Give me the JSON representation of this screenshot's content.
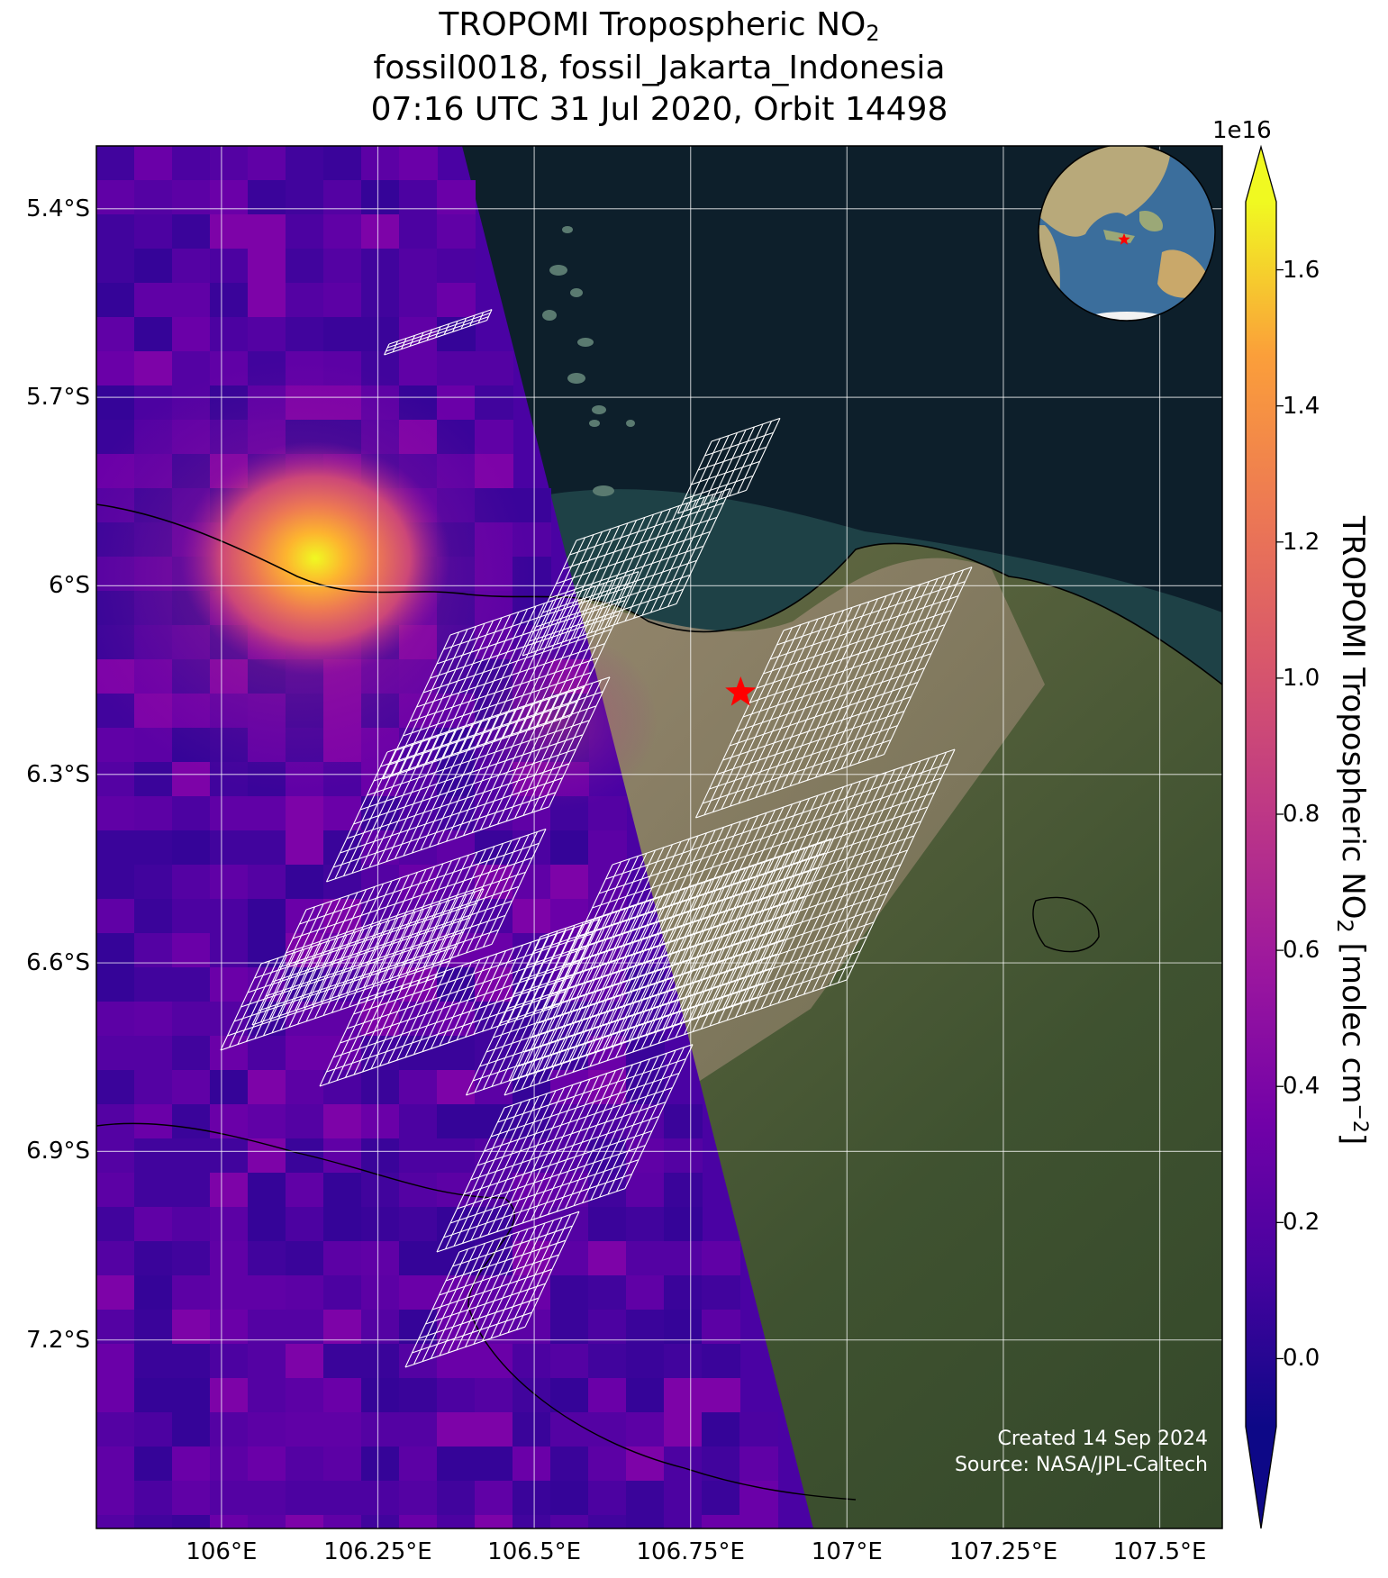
{
  "title": {
    "line1_text": "TROPOMI Tropospheric NO",
    "line1_sub": "2",
    "line2": "fossil0018, fossil_Jakarta_Indonesia",
    "line3": "07:16 UTC 31 Jul 2020, Orbit 14498"
  },
  "map": {
    "projection": "PlateCarree",
    "lon_range": [
      105.8,
      107.6
    ],
    "lat_range": [
      -7.5,
      -5.3
    ],
    "lon_ticks": [
      106,
      106.25,
      106.5,
      106.75,
      107,
      107.25,
      107.5
    ],
    "lon_tick_labels": [
      "106°E",
      "106.25°E",
      "106.5°E",
      "106.75°E",
      "107°E",
      "107.25°E",
      "107.5°E"
    ],
    "lat_ticks": [
      -5.4,
      -5.7,
      -6.0,
      -6.3,
      -6.6,
      -6.9,
      -7.2
    ],
    "lat_tick_labels": [
      "5.4°S",
      "5.7°S",
      "6°S",
      "6.3°S",
      "6.6°S",
      "6.9°S",
      "7.2°S"
    ],
    "gridlines": true,
    "basemap": "satellite imagery",
    "target_marker": {
      "symbol": "star",
      "color": "#ff0000",
      "lon": 106.83,
      "lat": -6.17
    },
    "hotspot_center": {
      "lon": 106.1,
      "lat": -5.9,
      "peak_no2": 1.6
    },
    "swath_edge": {
      "north": {
        "lon": 106.38,
        "lat": -5.3
      },
      "south": {
        "lon": 106.93,
        "lat": -7.5
      }
    },
    "inset_globe": {
      "marker_color": "#ff0000",
      "marker_symbol": "star"
    }
  },
  "colorbar": {
    "colormap": "plasma",
    "min": -0.1,
    "max": 1.7,
    "exponent_label": "1e16",
    "ticks": [
      0.0,
      0.2,
      0.4,
      0.6,
      0.8,
      1.0,
      1.2,
      1.4,
      1.6
    ],
    "tick_labels": [
      "0.0",
      "0.2",
      "0.4",
      "0.6",
      "0.8",
      "1.0",
      "1.2",
      "1.4",
      "1.6"
    ],
    "extend": "both",
    "label_text": "TROPOMI Tropospheric NO",
    "label_sub": "2",
    "label_unit": " [molec cm",
    "label_sup": "−2",
    "label_end": "]"
  },
  "footer": {
    "created": "Created 14 Sep 2024",
    "source": "Source: NASA/JPL-Caltech"
  }
}
